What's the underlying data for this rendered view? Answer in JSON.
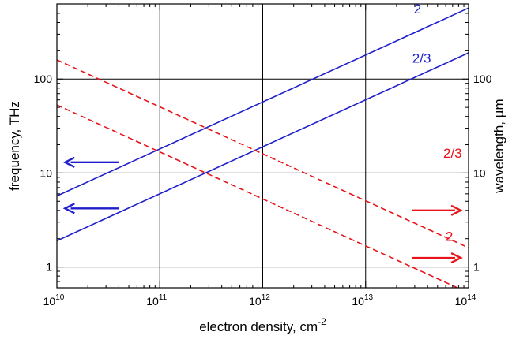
{
  "chart_data": {
    "type": "line",
    "x_scale": "log",
    "y_scale": "log",
    "xlim": [
      10000000000.0,
      100000000000000.0
    ],
    "ylim": [
      0.6,
      630
    ],
    "grid": true,
    "xlabel": {
      "base": "electron density, cm",
      "sup": "-2"
    },
    "ylabel_left": "frequency, THz",
    "ylabel_right": "wavelength, µm",
    "x_ticks": [
      {
        "value": 10000000000.0,
        "base": "10",
        "exp": "10"
      },
      {
        "value": 100000000000.0,
        "base": "10",
        "exp": "11"
      },
      {
        "value": 1000000000000.0,
        "base": "10",
        "exp": "12"
      },
      {
        "value": 10000000000000.0,
        "base": "10",
        "exp": "13"
      },
      {
        "value": 100000000000000.0,
        "base": "10",
        "exp": "14"
      }
    ],
    "y_ticks_left": [
      {
        "value": 1,
        "label": "1"
      },
      {
        "value": 10,
        "label": "10"
      },
      {
        "value": 100,
        "label": "100"
      }
    ],
    "y_ticks_right": [
      {
        "value": 1,
        "label": "1"
      },
      {
        "value": 10,
        "label": "10"
      },
      {
        "value": 100,
        "label": "100"
      }
    ],
    "colors": {
      "frequency": "#1f1fcc",
      "wavelength": "#e8141a",
      "grid": "#000000"
    },
    "series": [
      {
        "label": "2",
        "axis": "frequency",
        "style": "solid",
        "x": [
          10000000000.0,
          100000000000000.0
        ],
        "y": [
          5.7,
          570
        ],
        "label_at": [
          32000000000000.0,
          500
        ]
      },
      {
        "label": "2/3",
        "axis": "frequency",
        "style": "solid",
        "x": [
          10000000000.0,
          100000000000000.0
        ],
        "y": [
          1.9,
          190
        ],
        "label_at": [
          35000000000000.0,
          150
        ]
      },
      {
        "label": "2/3",
        "axis": "wavelength",
        "style": "dashed",
        "x": [
          10000000000.0,
          100000000000000.0
        ],
        "y": [
          160,
          1.6
        ],
        "label_at": [
          70000000000000.0,
          14.5
        ]
      },
      {
        "label": "2",
        "axis": "wavelength",
        "style": "dashed",
        "x": [
          10000000000.0,
          100000000000000.0
        ],
        "y": [
          53,
          0.53
        ],
        "label_at": [
          65000000000000.0,
          1.9
        ]
      }
    ],
    "arrows": [
      {
        "axis": "frequency",
        "direction": "left",
        "x_from": 40000000000.0,
        "x_to": 12000000000.0,
        "y": 13
      },
      {
        "axis": "frequency",
        "direction": "left",
        "x_from": 40000000000.0,
        "x_to": 12000000000.0,
        "y": 4.2
      },
      {
        "axis": "wavelength",
        "direction": "right",
        "x_from": 28000000000000.0,
        "x_to": 84000000000000.0,
        "y": 4.0
      },
      {
        "axis": "wavelength",
        "direction": "right",
        "x_from": 28000000000000.0,
        "x_to": 84000000000000.0,
        "y": 1.25
      }
    ]
  }
}
